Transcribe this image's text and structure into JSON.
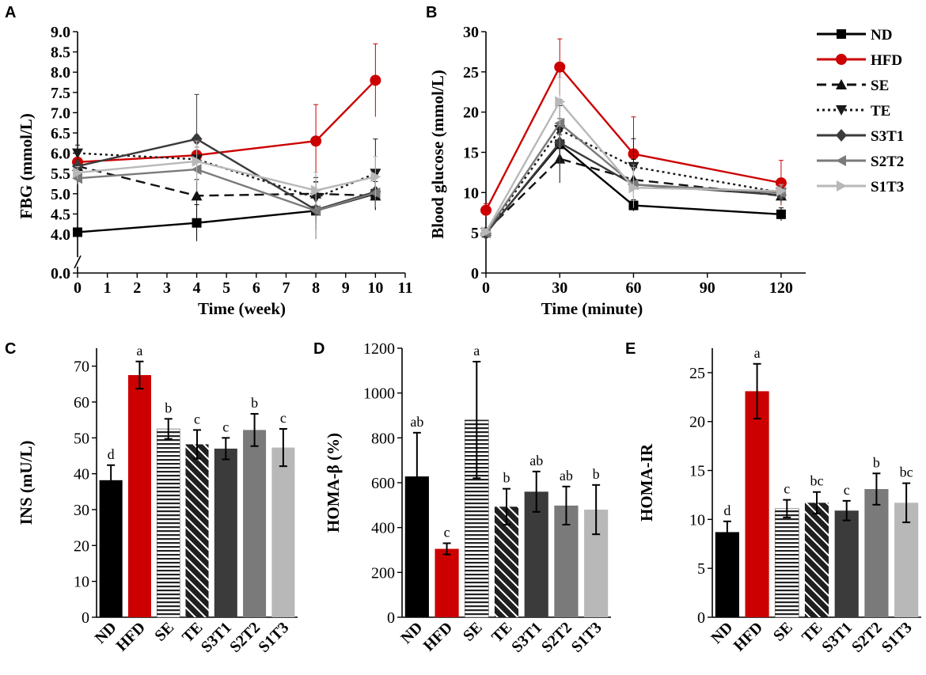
{
  "colors": {
    "ND": "#000000",
    "HFD": "#cc0000",
    "SE": "#111111",
    "TE": "#1a1a1a",
    "S3T1": "#3b3b3b",
    "S2T2": "#7a7a7a",
    "S1T3": "#b8b8b8"
  },
  "legend": {
    "items": [
      {
        "key": "ND",
        "label": "ND",
        "marker": "square",
        "dash": "solid"
      },
      {
        "key": "HFD",
        "label": "HFD",
        "marker": "circle",
        "dash": "solid"
      },
      {
        "key": "SE",
        "label": "SE",
        "marker": "triangle-up",
        "dash": "dashed"
      },
      {
        "key": "TE",
        "label": "TE",
        "marker": "triangle-down",
        "dash": "dotted"
      },
      {
        "key": "S3T1",
        "label": "S3T1",
        "marker": "diamond",
        "dash": "solid"
      },
      {
        "key": "S2T2",
        "label": "S2T2",
        "marker": "triangle-left",
        "dash": "solid"
      },
      {
        "key": "S1T3",
        "label": "S1T3",
        "marker": "triangle-right",
        "dash": "solid"
      }
    ]
  },
  "chart_data": [
    {
      "panel": "A",
      "type": "line",
      "xlabel": "Time (week)",
      "ylabel": "FBG (mmol/L)",
      "x_ticks": [
        "0",
        "1",
        "2",
        "3",
        "4",
        "5",
        "6",
        "7",
        "8",
        "9",
        "10",
        "11"
      ],
      "y_ticks": [
        "0.0",
        "4.0",
        "4.5",
        "5.0",
        "5.5",
        "6.0",
        "6.5",
        "7.0",
        "7.5",
        "8.0",
        "8.5",
        "9.0"
      ],
      "axis_break": "0.0 to 4.0",
      "xlim": [
        0,
        11
      ],
      "ylim": [
        4.0,
        9.0
      ],
      "x": [
        0,
        4,
        8,
        10
      ],
      "series": [
        {
          "name": "ND",
          "values": [
            4.05,
            4.28,
            4.58,
            5.0
          ],
          "err": [
            0.1,
            0.45,
            0.3,
            0.4
          ]
        },
        {
          "name": "HFD",
          "values": [
            5.78,
            5.95,
            6.3,
            7.8
          ],
          "err": [
            0.1,
            0.3,
            0.9,
            0.9
          ]
        },
        {
          "name": "SE",
          "values": [
            5.68,
            4.95,
            5.0,
            4.95
          ],
          "err": [
            0.15,
            0.4,
            0.4,
            0.35
          ]
        },
        {
          "name": "TE",
          "values": [
            6.0,
            5.85,
            4.9,
            5.5
          ],
          "err": [
            0.2,
            0.6,
            0.4,
            0.85
          ]
        },
        {
          "name": "S3T1",
          "values": [
            5.68,
            6.35,
            4.6,
            5.05
          ],
          "err": [
            0.15,
            1.1,
            0.5,
            0.4
          ]
        },
        {
          "name": "S2T2",
          "values": [
            5.38,
            5.6,
            4.58,
            5.02
          ],
          "err": [
            0.15,
            0.55,
            0.7,
            0.35
          ]
        },
        {
          "name": "S1T3",
          "values": [
            5.52,
            5.8,
            5.08,
            5.42
          ],
          "err": [
            0.15,
            0.5,
            0.45,
            0.5
          ]
        }
      ]
    },
    {
      "panel": "B",
      "type": "line",
      "xlabel": "Time (minute)",
      "ylabel": "Blood glucose (mmol/L)",
      "x_ticks": [
        "0",
        "30",
        "60",
        "90",
        "120"
      ],
      "y_ticks": [
        "0",
        "5",
        "10",
        "15",
        "20",
        "25",
        "30"
      ],
      "xlim": [
        0,
        130
      ],
      "ylim": [
        0,
        30
      ],
      "x": [
        0,
        30,
        60,
        120
      ],
      "series": [
        {
          "name": "ND",
          "values": [
            5.0,
            16.0,
            8.4,
            7.3
          ],
          "err": [
            0.3,
            1.8,
            0.7,
            0.8
          ]
        },
        {
          "name": "HFD",
          "values": [
            7.8,
            25.6,
            14.8,
            11.2
          ],
          "err": [
            0.8,
            3.5,
            4.6,
            2.8
          ]
        },
        {
          "name": "SE",
          "values": [
            5.2,
            14.2,
            11.6,
            9.6
          ],
          "err": [
            0.4,
            3.0,
            2.5,
            0.8
          ]
        },
        {
          "name": "TE",
          "values": [
            5.0,
            17.8,
            13.2,
            10.0
          ],
          "err": [
            0.4,
            3.0,
            3.5,
            0.8
          ]
        },
        {
          "name": "S3T1",
          "values": [
            4.9,
            16.2,
            11.0,
            9.7
          ],
          "err": [
            0.4,
            3.0,
            2.2,
            0.8
          ]
        },
        {
          "name": "S2T2",
          "values": [
            5.0,
            18.6,
            11.0,
            10.0
          ],
          "err": [
            0.4,
            3.0,
            2.5,
            0.8
          ]
        },
        {
          "name": "S1T3",
          "values": [
            5.1,
            21.3,
            10.6,
            10.2
          ],
          "err": [
            0.4,
            3.0,
            2.5,
            0.8
          ]
        }
      ]
    },
    {
      "panel": "C",
      "type": "bar",
      "ylabel": "INS (mU/L)",
      "ylim": [
        0,
        75
      ],
      "y_ticks": [
        "0",
        "10",
        "20",
        "30",
        "40",
        "50",
        "60",
        "70"
      ],
      "categories": [
        "ND",
        "HFD",
        "SE",
        "TE",
        "S3T1",
        "S2T2",
        "S1T3"
      ],
      "values": [
        38.2,
        67.5,
        52.5,
        48.2,
        47.0,
        52.2,
        47.3
      ],
      "errors": [
        4.2,
        3.8,
        2.8,
        4.0,
        3.0,
        4.5,
        5.2
      ],
      "labels": [
        "d",
        "a",
        "b",
        "c",
        "c",
        "b",
        "c"
      ]
    },
    {
      "panel": "D",
      "type": "bar",
      "ylabel": "HOMA-β (%)",
      "ylim": [
        0,
        1200
      ],
      "y_ticks": [
        "0",
        "200",
        "400",
        "600",
        "800",
        "1000",
        "1200"
      ],
      "categories": [
        "ND",
        "HFD",
        "SE",
        "TE",
        "S3T1",
        "S2T2",
        "S1T3"
      ],
      "values": [
        628,
        305,
        880,
        493,
        560,
        498,
        480
      ],
      "errors": [
        195,
        25,
        260,
        80,
        90,
        85,
        110
      ],
      "labels": [
        "ab",
        "c",
        "a",
        "b",
        "ab",
        "ab",
        "b"
      ]
    },
    {
      "panel": "E",
      "type": "bar",
      "ylabel": "HOMA-IR",
      "ylim": [
        0,
        27.5
      ],
      "y_ticks": [
        "0",
        "5",
        "10",
        "15",
        "20",
        "25"
      ],
      "categories": [
        "ND",
        "HFD",
        "SE",
        "TE",
        "S3T1",
        "S2T2",
        "S1T3"
      ],
      "values": [
        8.7,
        23.1,
        11.1,
        11.7,
        10.9,
        13.1,
        11.7
      ],
      "errors": [
        1.1,
        2.8,
        0.9,
        1.1,
        1.0,
        1.6,
        2.0
      ],
      "labels": [
        "d",
        "a",
        "c",
        "bc",
        "c",
        "b",
        "bc"
      ]
    }
  ]
}
